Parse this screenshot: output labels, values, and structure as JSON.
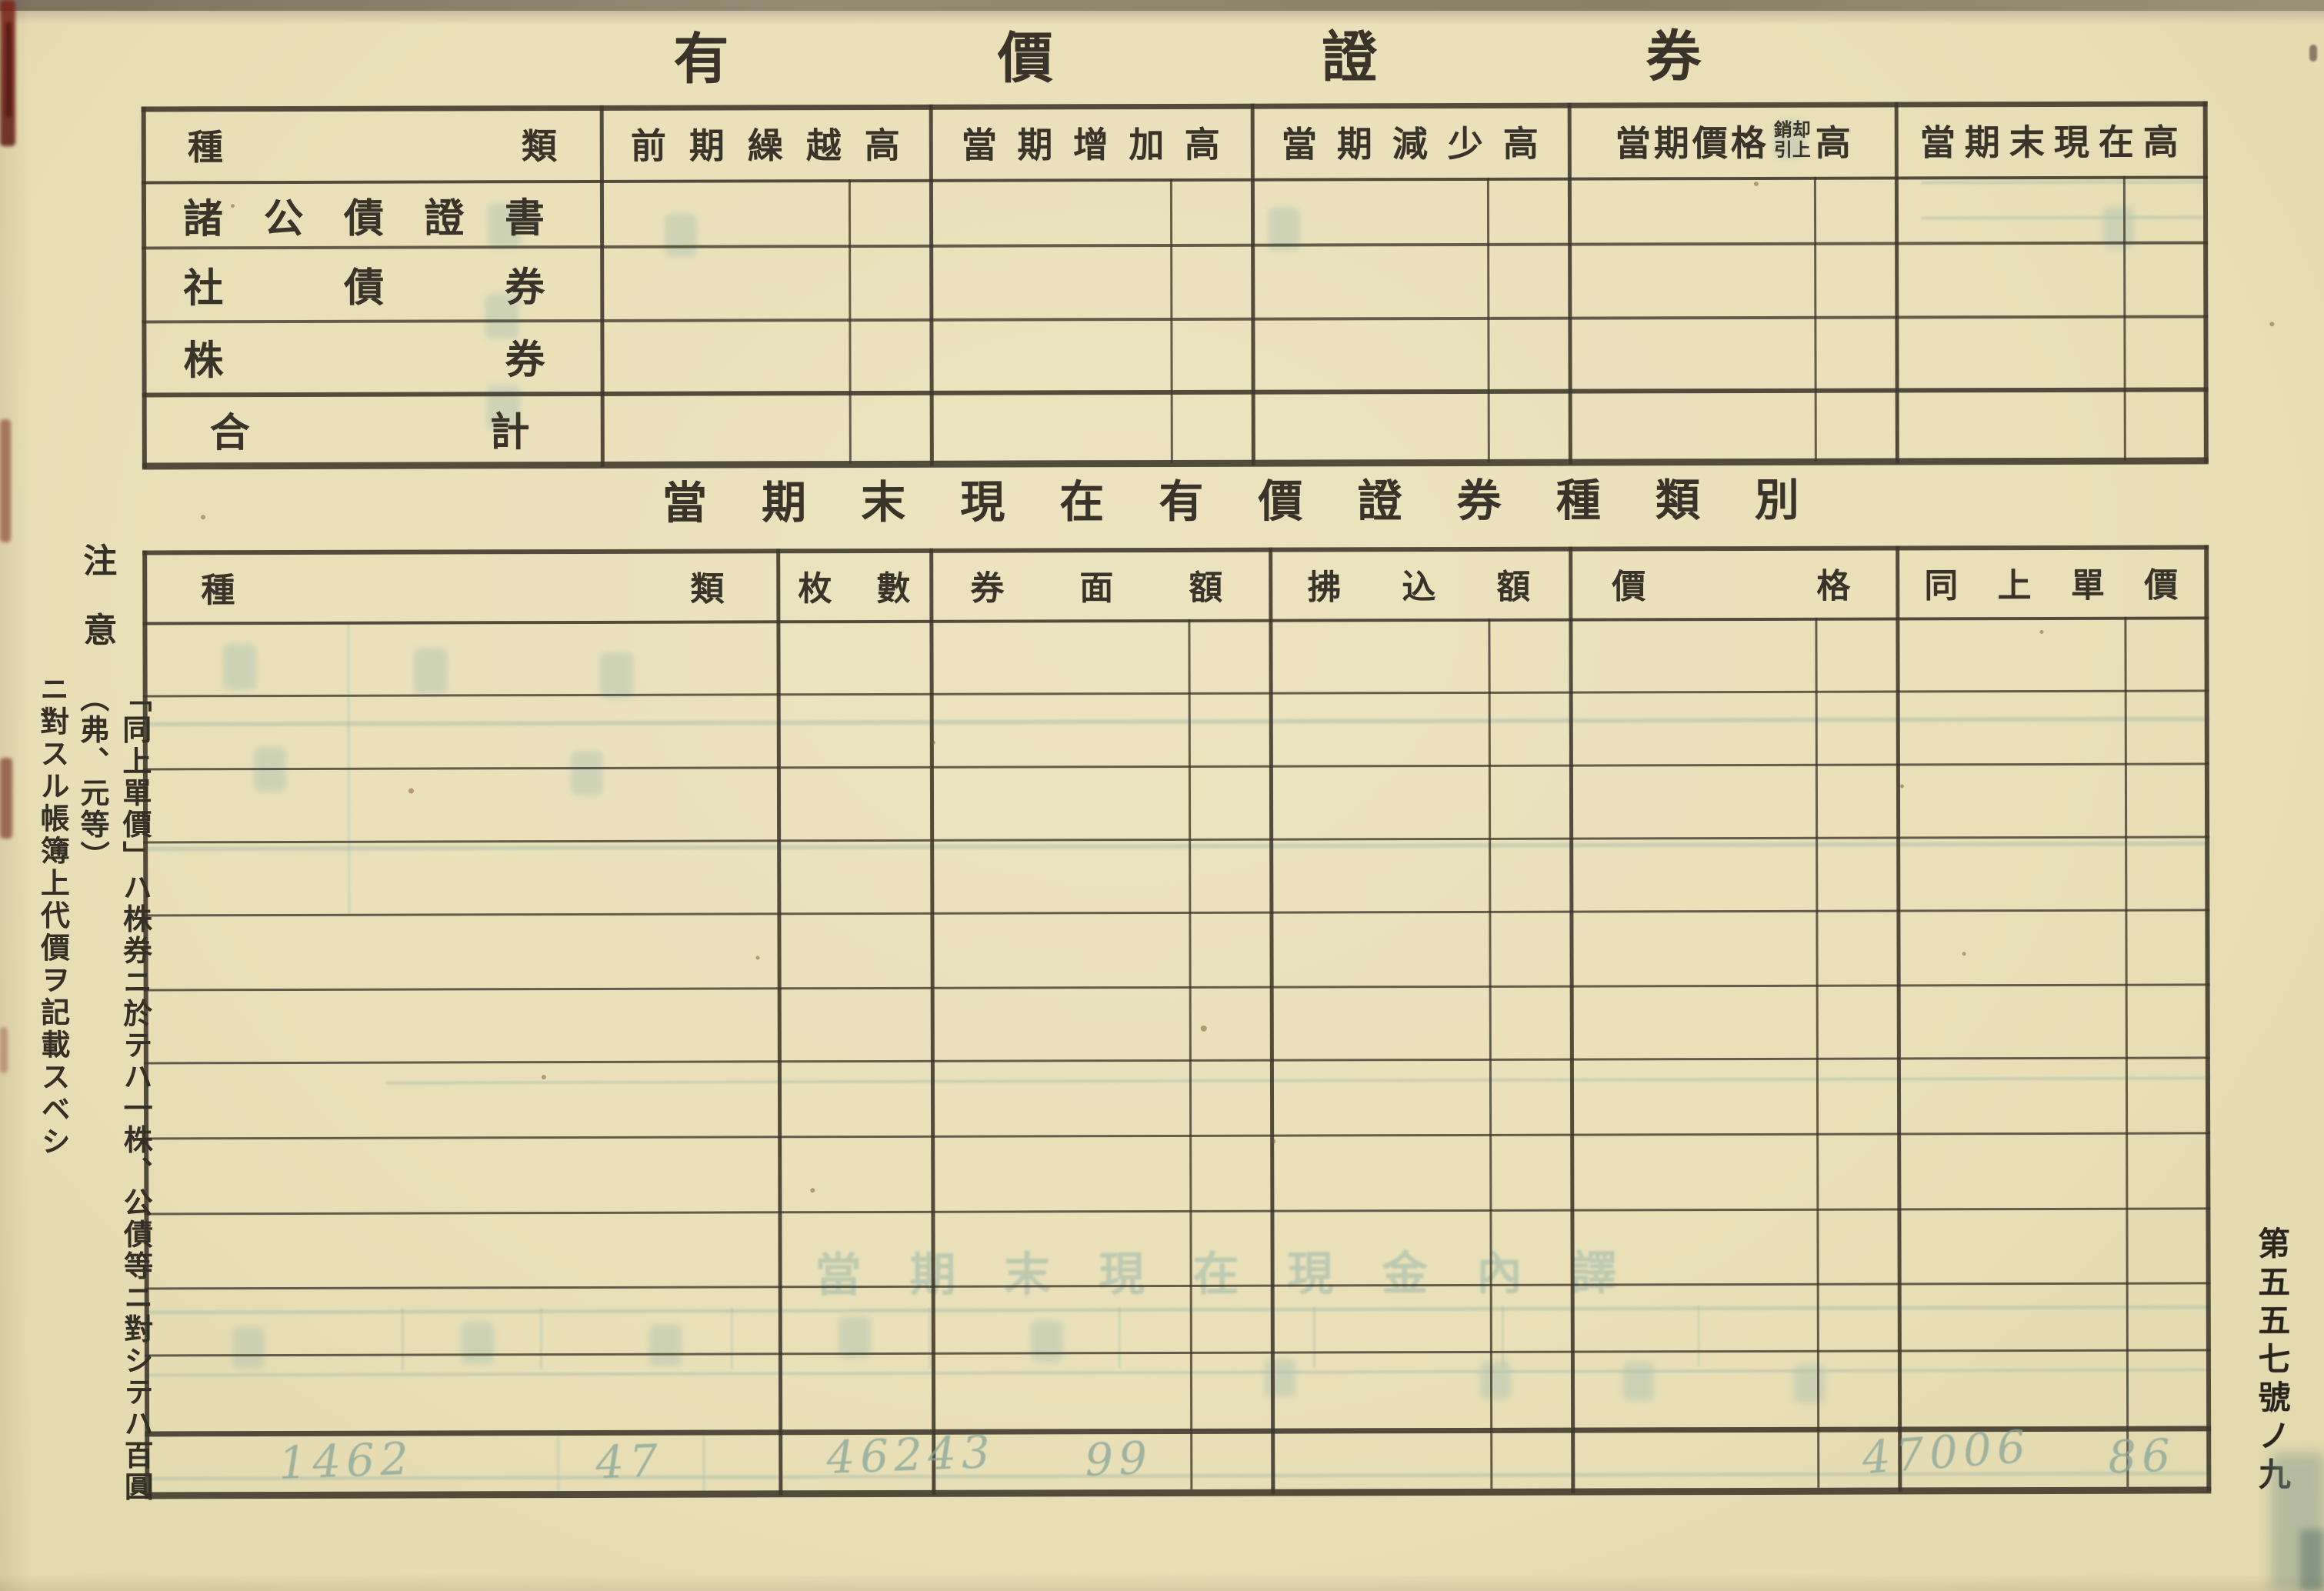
{
  "page": {
    "title": "有價證券",
    "form_number": "第五五七號ノ九"
  },
  "table1": {
    "col_type": "種類",
    "col_prev": "前期繰越高",
    "col_increase": "當期增加高",
    "col_decrease": "當期減少高",
    "col_writeoff_main": "當期價格",
    "col_writeoff_small_top": "銷却",
    "col_writeoff_small_bottom": "引上",
    "col_writeoff_tail": "高",
    "col_end": "當期末現在高",
    "rows": [
      "諸公債證書",
      "社債券",
      "株券",
      "合計"
    ]
  },
  "section2_title": "當期末現在有價證券種類別",
  "table2": {
    "col_type": "種類",
    "col_count": "枚數",
    "col_face": "券面額",
    "col_paid": "拂込額",
    "col_price": "價格",
    "col_unit": "同上單價"
  },
  "note": {
    "heading": "注意",
    "line1": "「同上單價」ハ株券ニ於テハ一株、公債等ニ對シテハ百圓（弗、元等）",
    "line2": "ニ對スル帳簿上代價ヲ記載スベシ"
  },
  "ghost": {
    "title": "當期末現在現金內譯"
  },
  "handwriting": {
    "a1": "1462",
    "a2": "47",
    "b1": "46243",
    "b2": "99",
    "c1": "47006",
    "c2": "86"
  }
}
